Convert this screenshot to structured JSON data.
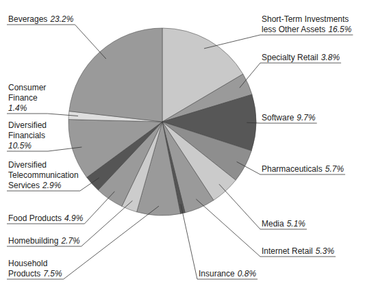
{
  "chart_data": {
    "type": "pie",
    "categories": [
      "Short-Term Investments\nless Other Assets",
      "Specialty Retail",
      "Software",
      "Pharmaceuticals",
      "Media",
      "Internet Retail",
      "Insurance",
      "Household\nProducts",
      "Homebuilding",
      "Food Products",
      "Diversified\nTelecommunication\nServices",
      "Diversified\nFinancials",
      "Consumer\nFinance",
      "Beverages"
    ],
    "values": [
      16.5,
      3.8,
      9.7,
      5.7,
      5.1,
      5.3,
      0.8,
      7.5,
      2.7,
      4.9,
      2.9,
      10.5,
      1.4,
      23.2
    ],
    "value_labels": [
      "16.5%",
      "3.8%",
      "9.7%",
      "5.7%",
      "5.1%",
      "5.3%",
      "0.8%",
      "7.5%",
      "2.7%",
      "4.9%",
      "2.9%",
      "10.5%",
      "1.4%",
      "23.2%"
    ],
    "colors": [
      "#c9c9c9",
      "#9a9a9a",
      "#575757",
      "#8e8e8e",
      "#cbcbcb",
      "#9a9a9a",
      "#555555",
      "#9a9a9a",
      "#cccccc",
      "#9a9a9a",
      "#555555",
      "#9a9a9a",
      "#dedede",
      "#9a9a9a"
    ],
    "data_labels": true
  }
}
